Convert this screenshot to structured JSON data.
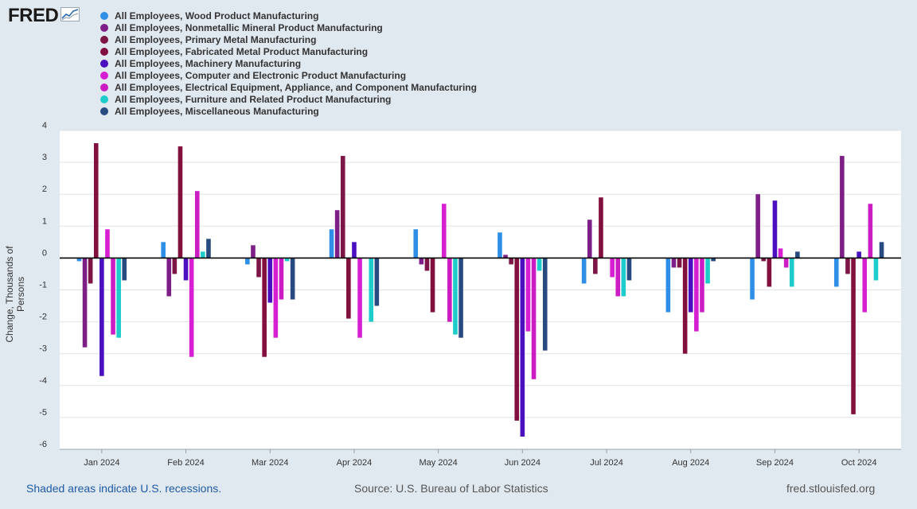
{
  "logo": {
    "text": "FRED",
    "icon": "fred-line-chart-icon"
  },
  "footer": {
    "recession_note": "Shaded areas indicate U.S. recessions.",
    "source": "Source: U.S. Bureau of Labor Statistics",
    "site": "fred.stlouisfed.org"
  },
  "chart_data": {
    "type": "bar",
    "title": "",
    "xlabel": "",
    "ylabel": "Change, Thousands of Persons",
    "ylim": [
      -6,
      4
    ],
    "yticks": [
      4,
      3,
      2,
      1,
      0,
      -1,
      -2,
      -3,
      -4,
      -5,
      -6
    ],
    "grid": true,
    "legend_position": "top",
    "categories": [
      "Jan 2024",
      "Feb 2024",
      "Mar 2024",
      "Apr 2024",
      "May 2024",
      "Jun 2024",
      "Jul 2024",
      "Aug 2024",
      "Sep 2024",
      "Oct 2024"
    ],
    "series": [
      {
        "name": "All Employees, Wood Product Manufacturing",
        "color": "#2f8fe6",
        "values": [
          -0.1,
          0.5,
          -0.2,
          0.9,
          0.9,
          0.8,
          -0.8,
          -1.7,
          -1.3,
          -0.9
        ]
      },
      {
        "name": "All Employees, Nonmetallic Mineral Product Manufacturing",
        "color": "#7d1f87",
        "values": [
          -2.8,
          -1.2,
          0.4,
          1.5,
          -0.2,
          0.1,
          1.2,
          -0.3,
          2.0,
          3.2
        ]
      },
      {
        "name": "All Employees, Primary Metal Manufacturing",
        "color": "#7d1646",
        "values": [
          -0.8,
          -0.5,
          -0.6,
          3.2,
          -0.4,
          -0.2,
          -0.5,
          -0.3,
          -0.1,
          -0.5
        ]
      },
      {
        "name": "All Employees, Fabricated Metal Product Manufacturing",
        "color": "#82103f",
        "values": [
          3.6,
          3.5,
          -3.1,
          -1.9,
          -1.7,
          -5.1,
          1.9,
          -3.0,
          -0.9,
          -4.9
        ]
      },
      {
        "name": "All Employees, Machinery Manufacturing",
        "color": "#4a0fbf",
        "values": [
          -3.7,
          -0.7,
          -1.4,
          0.5,
          0.0,
          -5.6,
          0.0,
          -1.7,
          1.8,
          0.2
        ]
      },
      {
        "name": "All Employees, Computer and Electronic Product Manufacturing",
        "color": "#d61fd1",
        "values": [
          0.9,
          -3.1,
          -2.5,
          -2.5,
          1.7,
          -2.3,
          -0.6,
          -2.3,
          0.3,
          -1.7
        ]
      },
      {
        "name": "All Employees, Electrical Equipment, Appliance, and Component Manufacturing",
        "color": "#cc1cc4",
        "values": [
          -2.4,
          2.1,
          -1.3,
          0.0,
          -2.0,
          -3.8,
          -1.2,
          -1.7,
          -0.3,
          1.7
        ]
      },
      {
        "name": "All Employees, Furniture and Related Product Manufacturing",
        "color": "#1ecccc",
        "values": [
          -2.5,
          0.2,
          -0.1,
          -2.0,
          -2.4,
          -0.4,
          -1.2,
          -0.8,
          -0.9,
          -0.7
        ]
      },
      {
        "name": "All Employees, Miscellaneous Manufacturing",
        "color": "#274a80",
        "values": [
          -0.7,
          0.6,
          -1.3,
          -1.5,
          -2.5,
          -2.9,
          -0.7,
          -0.1,
          0.2,
          0.5
        ]
      }
    ]
  }
}
